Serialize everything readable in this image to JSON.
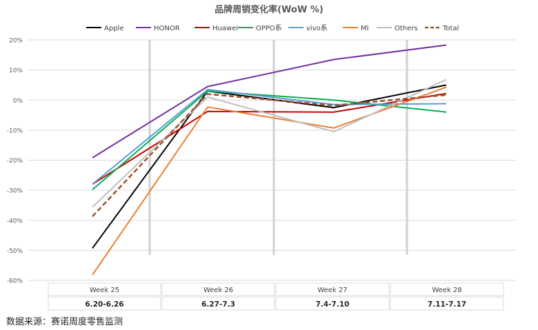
{
  "chart_data": {
    "type": "line",
    "title": "品牌周销变化率(WoW %)",
    "x": [
      "Week 25",
      "Week 26",
      "Week 27",
      "Week 28"
    ],
    "date_ranges": [
      "6.20-6.26",
      "6.27-7.3",
      "7.4-7.10",
      "7.11-7.17"
    ],
    "ylim": [
      -60,
      20
    ],
    "yticks": [
      20,
      10,
      0,
      -10,
      -20,
      -30,
      -40,
      -50,
      -60
    ],
    "ytick_labels": [
      "20%",
      "10%",
      "0%",
      "-10%",
      "-20%",
      "-30%",
      "-40%",
      "-50%",
      "-60%"
    ],
    "xlabel": "",
    "ylabel": "",
    "legend_position": "top",
    "series": [
      {
        "name": "Apple",
        "color": "#000000",
        "dashed": false,
        "values": [
          -49.3,
          3.0,
          -2.5,
          5.0
        ]
      },
      {
        "name": "HONOR",
        "color": "#7030A0",
        "dashed": false,
        "values": [
          -19.2,
          4.5,
          13.5,
          18.3
        ]
      },
      {
        "name": "Huawei",
        "color": "#C00000",
        "dashed": false,
        "values": [
          -28.0,
          -3.8,
          -4.0,
          2.2
        ]
      },
      {
        "name": "OPPO系",
        "color": "#00B050",
        "dashed": false,
        "values": [
          -29.8,
          3.0,
          0.0,
          -4.0
        ]
      },
      {
        "name": "vivo系",
        "color": "#5B9BD5",
        "dashed": false,
        "values": [
          -28.0,
          3.5,
          -1.5,
          -1.2
        ]
      },
      {
        "name": "MI",
        "color": "#ED7D31",
        "dashed": false,
        "values": [
          -58.2,
          -2.3,
          -9.3,
          4.3
        ]
      },
      {
        "name": "Others",
        "color": "#BFBFBF",
        "dashed": false,
        "values": [
          -35.6,
          1.0,
          -10.5,
          6.8
        ]
      },
      {
        "name": "Total",
        "color": "#A0522D",
        "dashed": true,
        "values": [
          -38.7,
          2.0,
          -1.8,
          1.7
        ]
      }
    ]
  },
  "source_note": "数据来源：赛诺周度零售监测"
}
